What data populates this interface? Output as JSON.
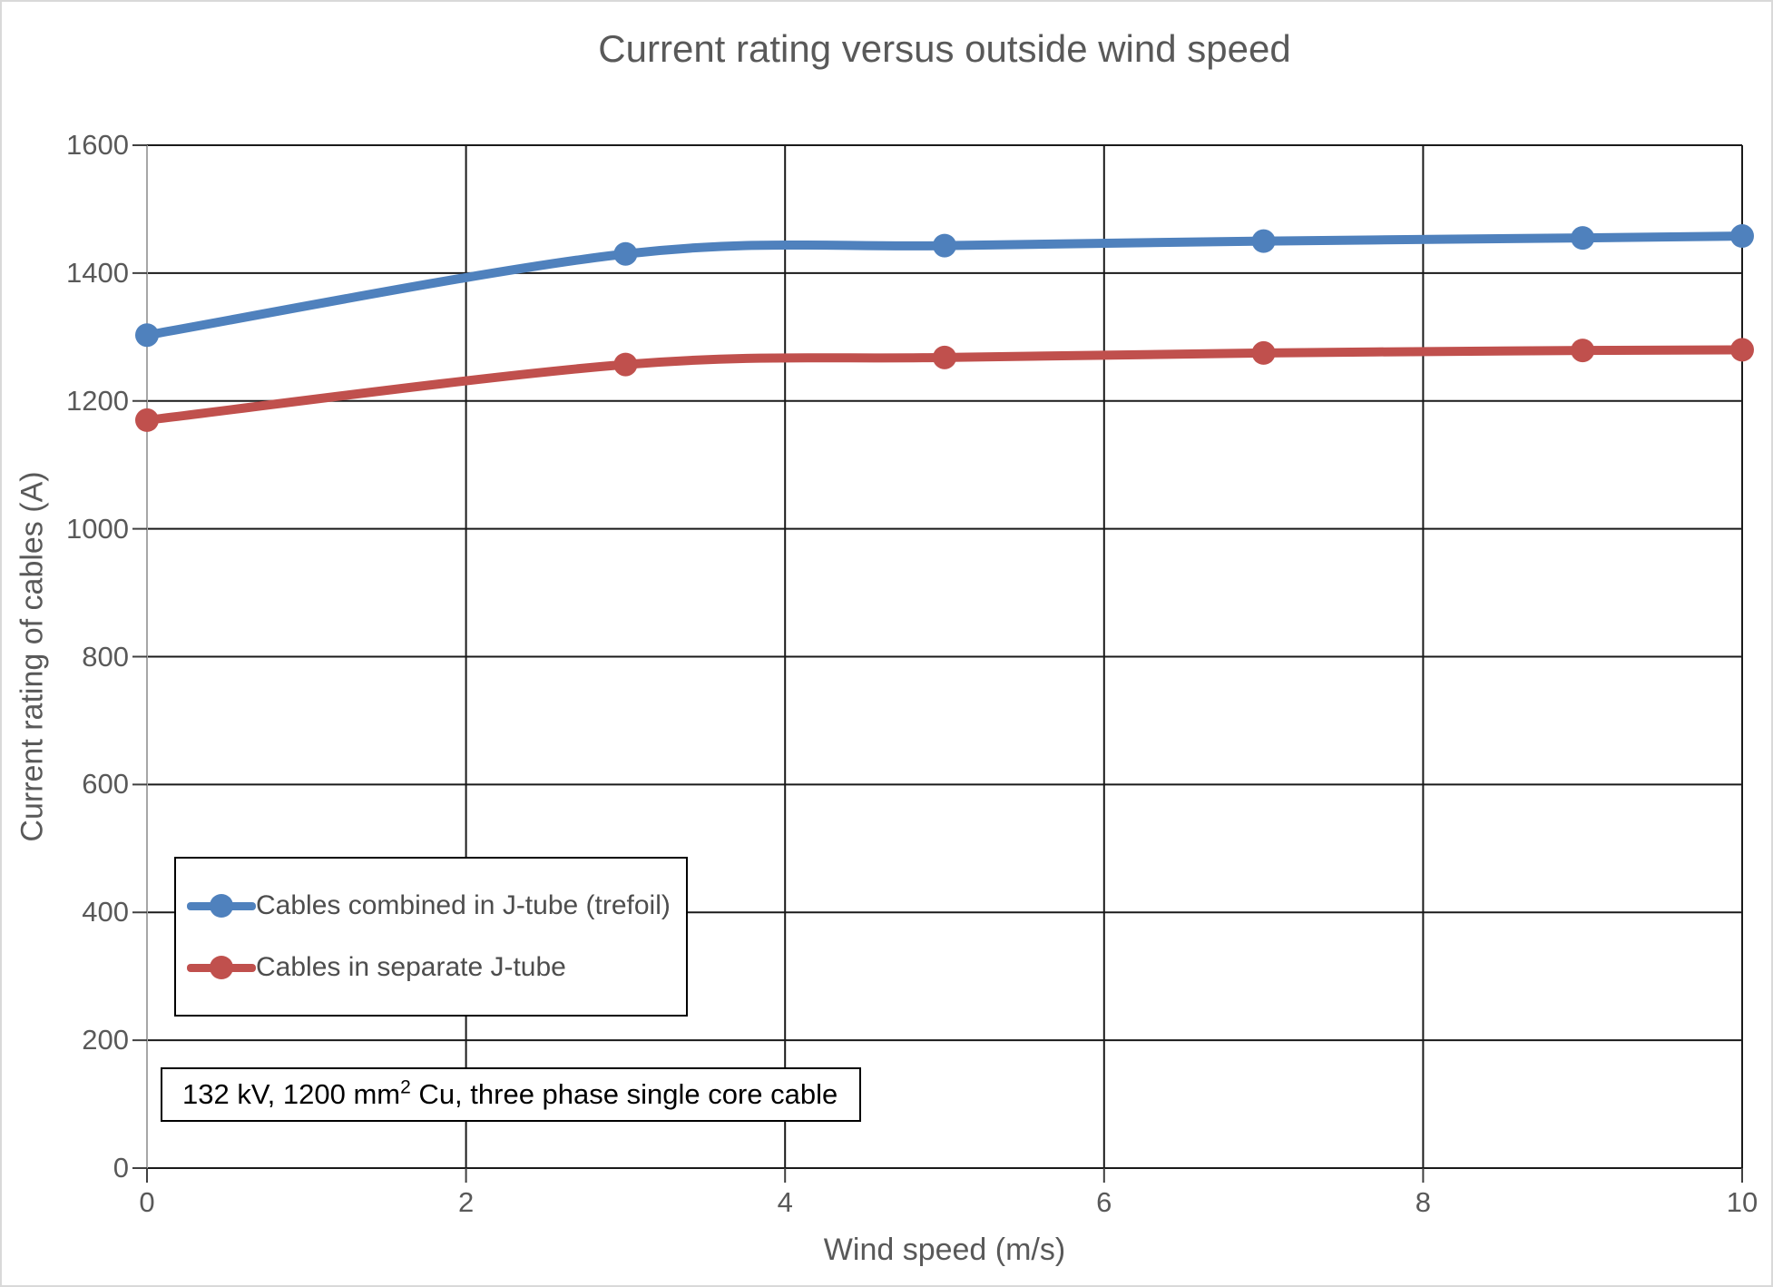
{
  "window": {
    "background": "#ffffff",
    "frame_border_color": "#d9d9d9"
  },
  "chart_data": {
    "type": "line",
    "title": "Current rating versus outside wind speed",
    "xlabel": "Wind speed (m/s)",
    "ylabel": "Current rating of cables (A)",
    "x": [
      0,
      3,
      5,
      7,
      9,
      10
    ],
    "series": [
      {
        "name": "Cables combined in J-tube (trefoil)",
        "color": "#4F81BD",
        "values": [
          1303,
          1430,
          1443,
          1450,
          1455,
          1458
        ]
      },
      {
        "name": "Cables in separate J-tube",
        "color": "#C0504D",
        "values": [
          1170,
          1257,
          1268,
          1275,
          1279,
          1280
        ]
      }
    ],
    "xlim": [
      0,
      10
    ],
    "ylim": [
      0,
      1600
    ],
    "xticks": [
      0,
      2,
      4,
      6,
      8,
      10
    ],
    "yticks": [
      0,
      200,
      400,
      600,
      800,
      1000,
      1200,
      1400,
      1600
    ],
    "grid": "both",
    "gridline_color": "#1a1a1a",
    "y_axis_line_color": "#a6a6a6",
    "tick_mark_color": "#404040",
    "text_color": "#595959",
    "line_width": 10,
    "marker": "circle",
    "marker_radius": 13,
    "smooth": true,
    "legend_position": "inside-bottom-left",
    "annotation": {
      "prefix": "132 kV, 1200 mm",
      "sup": "2",
      "suffix": " Cu, three phase single core cable"
    }
  }
}
